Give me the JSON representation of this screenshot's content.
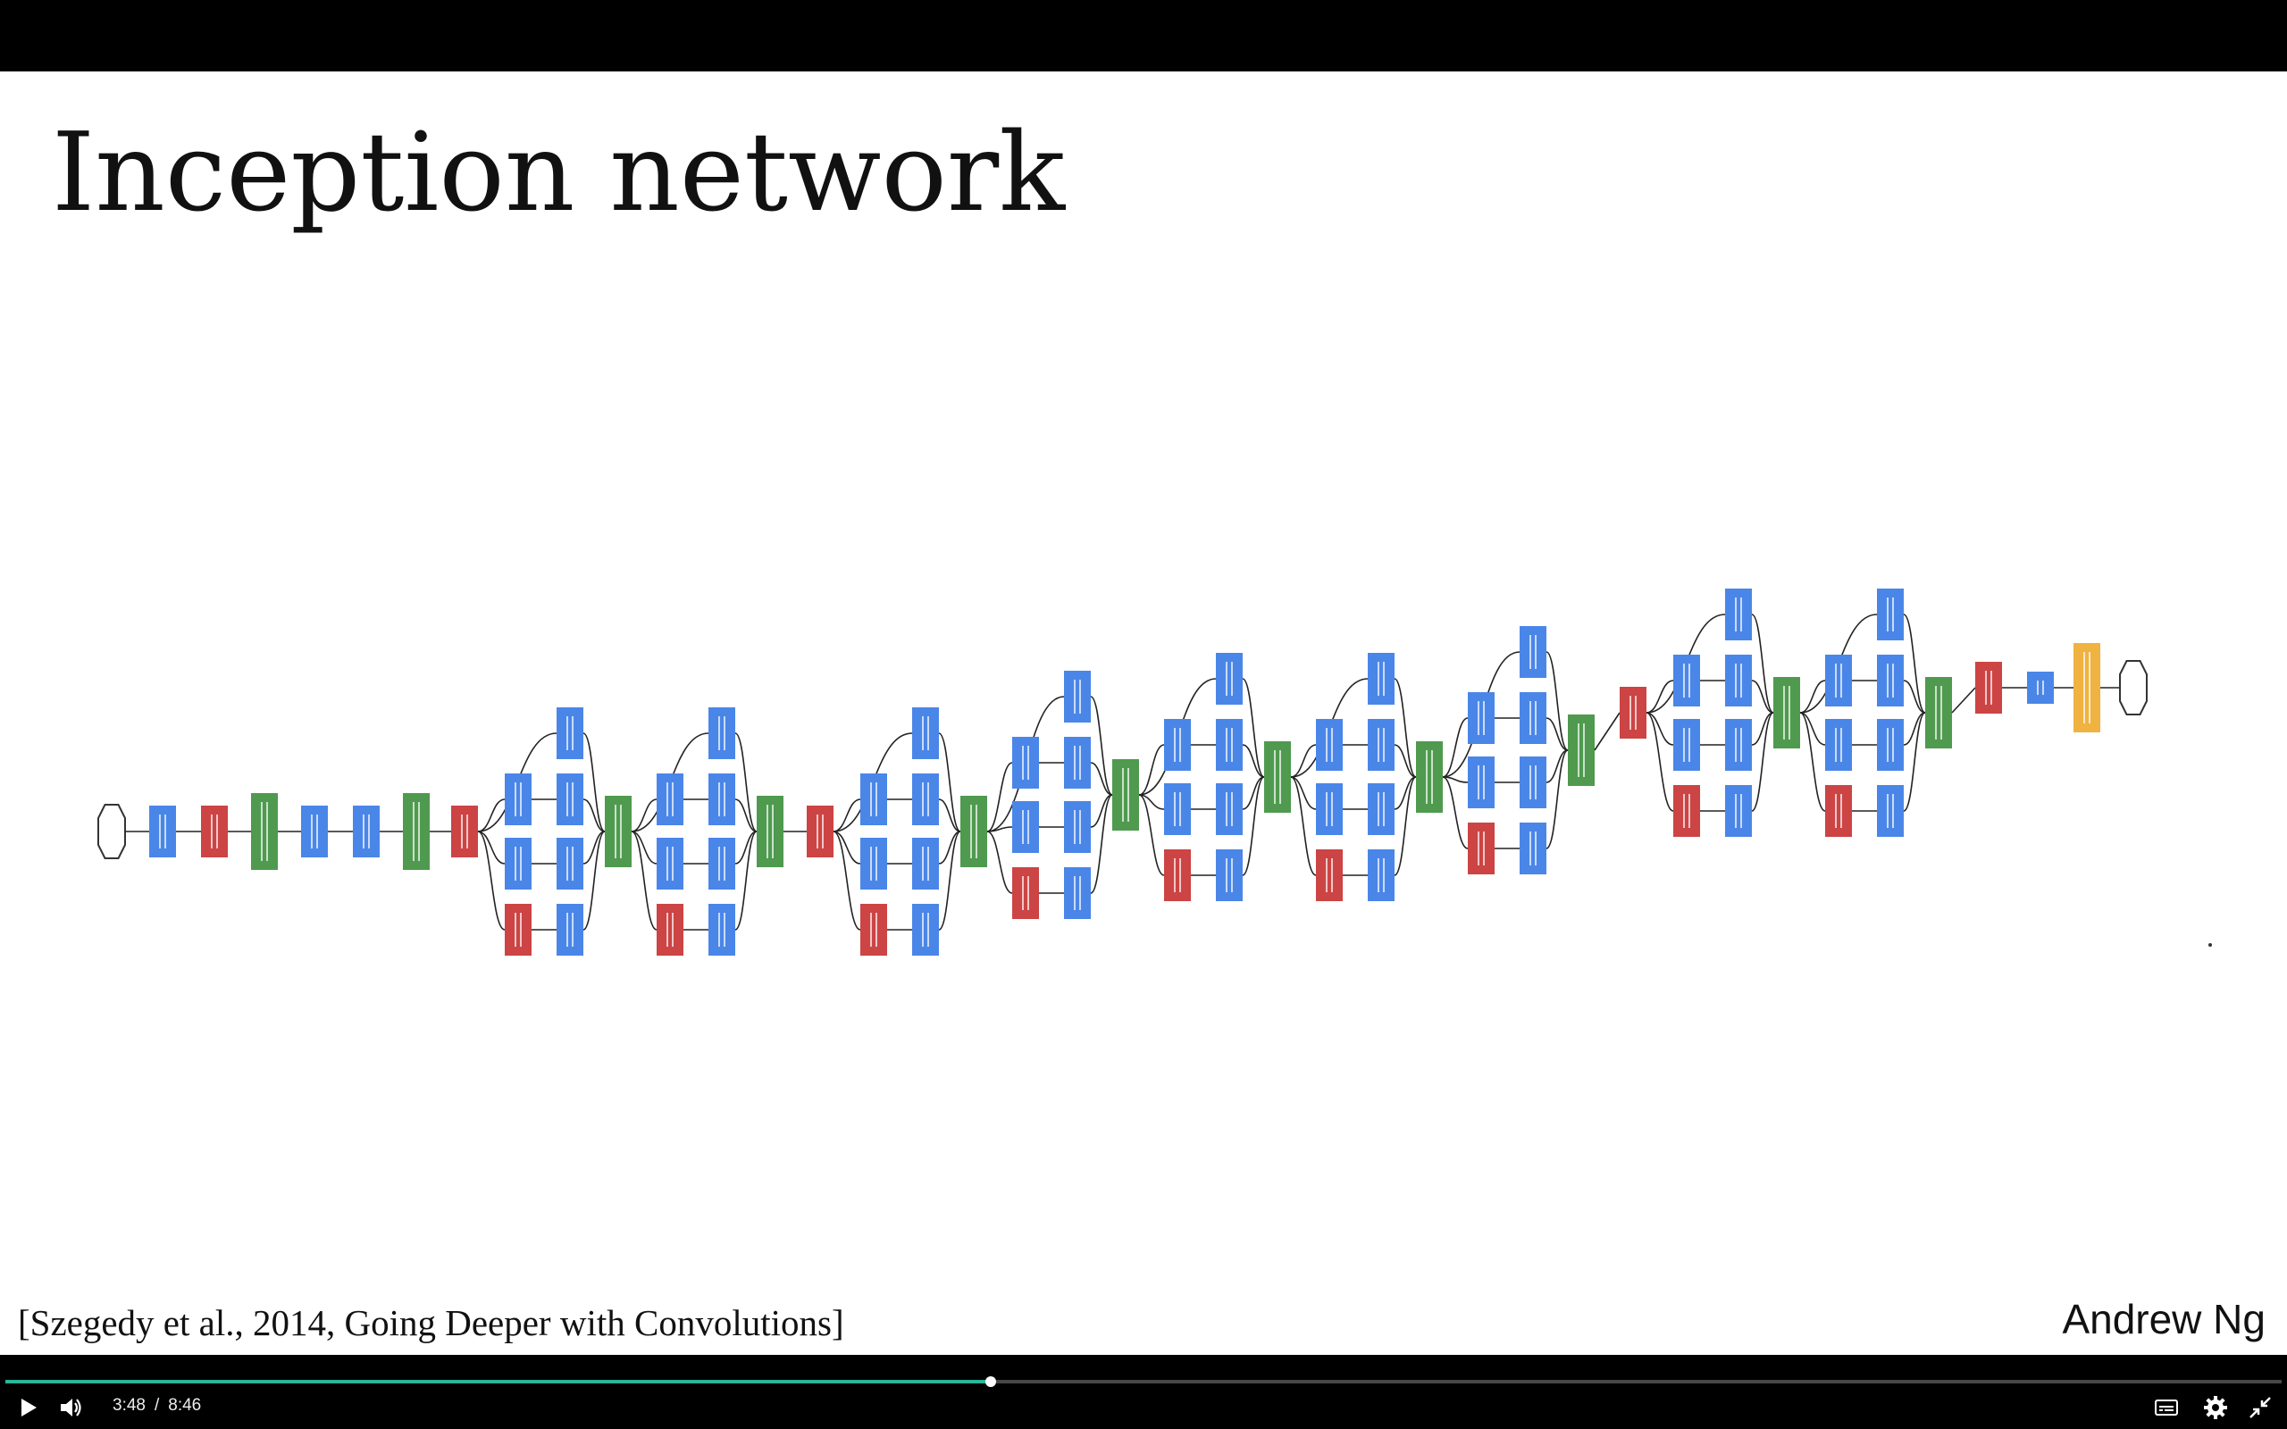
{
  "slide": {
    "title": "Inception network",
    "citation": "[Szegedy et al., 2014, Going Deeper with Convolutions]",
    "author": "Andrew Ng"
  },
  "player": {
    "current_time": "3:48",
    "separator": "/",
    "duration": "8:46",
    "progress_fraction": 0.433,
    "play_icon": "play-icon",
    "volume_icon": "volume-icon",
    "captions_icon": "captions-icon",
    "settings_icon": "gear-icon",
    "exit_fullscreen_icon": "exit-fullscreen-icon"
  },
  "colors": {
    "conv": "#4a86e8",
    "pool": "#cc4444",
    "concat": "#4f9a4f",
    "softmax": "#f0b240",
    "progress": "#2bb59a"
  }
}
